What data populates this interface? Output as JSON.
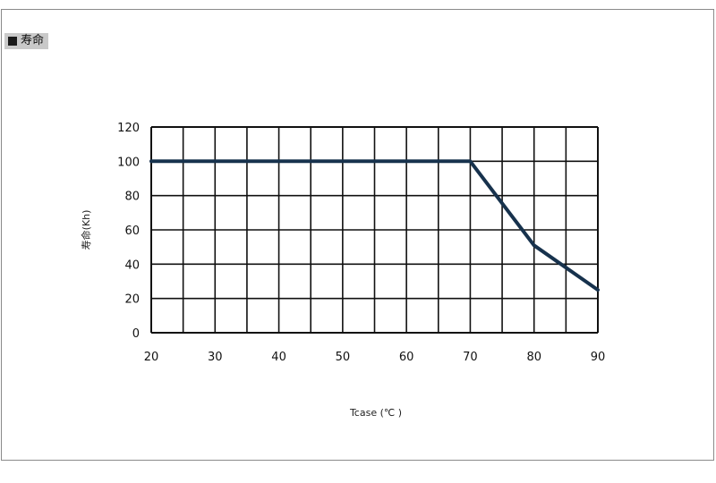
{
  "section": {
    "title": "寿命"
  },
  "chart_data": {
    "type": "line",
    "title": "",
    "xlabel": "Tcase (℃ )",
    "ylabel": "寿命(Kh)",
    "xlim": [
      20,
      90
    ],
    "ylim": [
      0,
      120
    ],
    "x_ticks": [
      20,
      30,
      40,
      50,
      60,
      70,
      80,
      90
    ],
    "y_ticks": [
      0,
      20,
      40,
      60,
      80,
      100,
      120
    ],
    "x_grid_step": 5,
    "y_grid_step": 20,
    "grid": true,
    "series": [
      {
        "x": [
          20,
          70,
          80,
          90
        ],
        "y": [
          100,
          100,
          51,
          25
        ],
        "color": "#17324d"
      }
    ]
  }
}
